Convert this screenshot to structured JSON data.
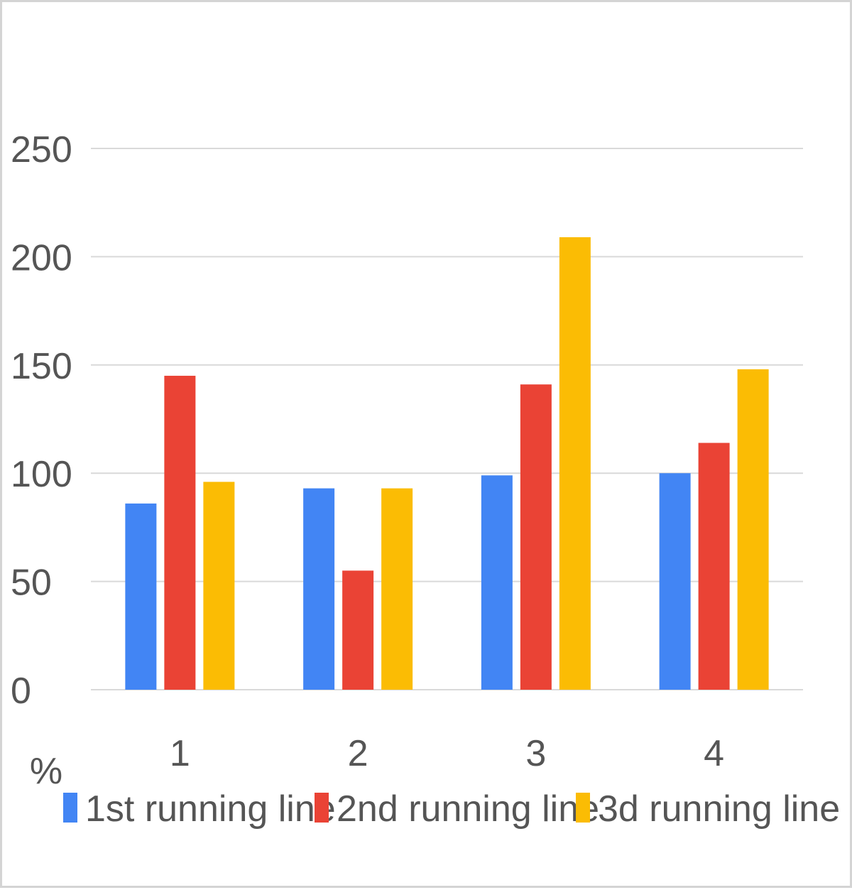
{
  "chart_data": {
    "type": "bar",
    "categories": [
      "1",
      "2",
      "3",
      "4"
    ],
    "series": [
      {
        "name": "1st running line",
        "color": "#4285F4",
        "values": [
          86,
          93,
          99,
          100
        ]
      },
      {
        "name": "2nd running line",
        "color": "#EA4335",
        "values": [
          145,
          55,
          141,
          114
        ]
      },
      {
        "name": "3d running line",
        "color": "#FBBC04",
        "values": [
          96,
          93,
          209,
          148
        ]
      }
    ],
    "title": "",
    "xlabel": "",
    "ylabel": "%",
    "ylim": [
      0,
      250
    ],
    "yticks": [
      "0",
      "50",
      "100",
      "150",
      "200",
      "250"
    ],
    "grid": true,
    "legend_position": "bottom",
    "grid_color": "#d9d9d9"
  }
}
